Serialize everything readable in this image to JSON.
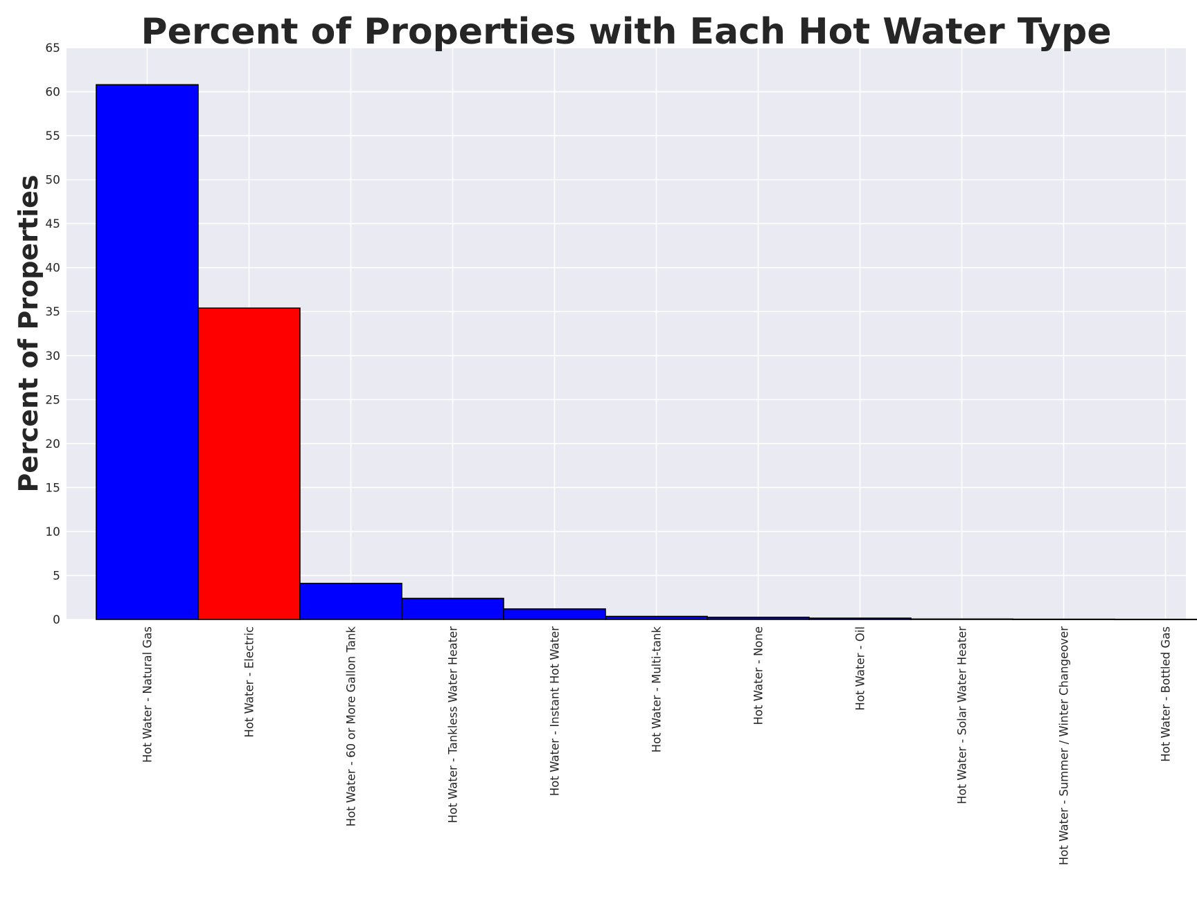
{
  "chart_data": {
    "type": "bar",
    "title": "Percent of Properties with Each Hot Water Type",
    "xlabel": "",
    "ylabel": "Percent of Properties",
    "ylim": [
      0,
      65
    ],
    "yticks": [
      0,
      5,
      10,
      15,
      20,
      25,
      30,
      35,
      40,
      45,
      50,
      55,
      60,
      65
    ],
    "grid": true,
    "legend": "none",
    "categories": [
      "Hot Water - Natural Gas",
      "Hot Water - Electric",
      "Hot Water - 60 or More Gallon Tank",
      "Hot Water - Tankless Water Heater",
      "Hot Water - Instant Hot Water",
      "Hot Water - Multi-tank",
      "Hot Water - None",
      "Hot Water - Oil",
      "Hot Water - Solar Water Heater",
      "Hot Water - Summer / Winter Changeover",
      "Hot Water - Bottled Gas"
    ],
    "values": [
      60.8,
      35.4,
      4.1,
      2.4,
      1.2,
      0.35,
      0.25,
      0.15,
      0.05,
      0.03,
      0.02
    ],
    "bar_colors": [
      "#0000ff",
      "#ff0000",
      "#0000ff",
      "#0000ff",
      "#0000ff",
      "#0000ff",
      "#0000ff",
      "#0000ff",
      "#0000ff",
      "#0000ff",
      "#0000ff"
    ],
    "plot_background": "#eaeaf2",
    "grid_color": "#ffffff",
    "edge_color": "#000000"
  }
}
